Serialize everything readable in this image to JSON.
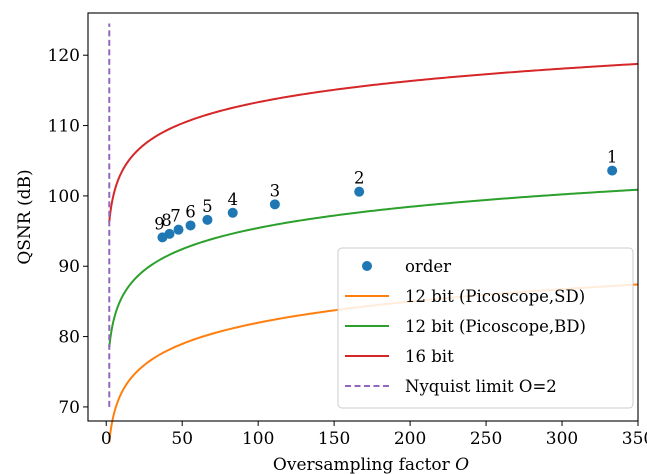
{
  "chart_data": {
    "type": "line",
    "xlabel": "Oversampling factor",
    "xlabel_symbol": "O",
    "ylabel": "QSNR (dB)",
    "xlim": [
      -12,
      350
    ],
    "ylim": [
      68,
      126
    ],
    "xticks": [
      0,
      50,
      100,
      150,
      200,
      250,
      300,
      350
    ],
    "yticks": [
      70,
      80,
      90,
      100,
      110,
      120
    ],
    "grid": false,
    "legend_position": "lower-right",
    "series": [
      {
        "name": "12 bit (Picoscope,SD)",
        "kind": "curve",
        "color": "#ff7f0e",
        "formula": "61.97 + 10*log10(O)",
        "x_range": [
          2,
          350
        ]
      },
      {
        "name": "12 bit (Picoscope,BD)",
        "kind": "curve",
        "color": "#2ca02c",
        "formula": "78.45 + 10*log10(O/2)",
        "x_range": [
          2,
          350
        ]
      },
      {
        "name": "16 bit",
        "kind": "curve",
        "color": "#d62728",
        "formula": "96.33 + 10*log10(O/2)",
        "x_range": [
          2,
          350
        ]
      },
      {
        "name": "Nyquist limit O=2",
        "kind": "vline",
        "color": "#9467bd",
        "x": 2,
        "y_range": [
          70,
          124.5
        ]
      }
    ],
    "points": {
      "name": "order",
      "color": "#1f77b4",
      "x": [
        333,
        166.5,
        111,
        83.25,
        66.6,
        55.5,
        47.57,
        41.63,
        37
      ],
      "y": [
        103.6,
        100.6,
        98.8,
        97.6,
        96.6,
        95.8,
        95.2,
        94.6,
        94.1
      ],
      "labels": [
        "1",
        "2",
        "3",
        "4",
        "5",
        "6",
        "7",
        "8",
        "9"
      ]
    },
    "legend": [
      "order",
      "12 bit (Picoscope,SD)",
      "12 bit (Picoscope,BD)",
      "16 bit",
      "Nyquist limit O=2"
    ]
  }
}
